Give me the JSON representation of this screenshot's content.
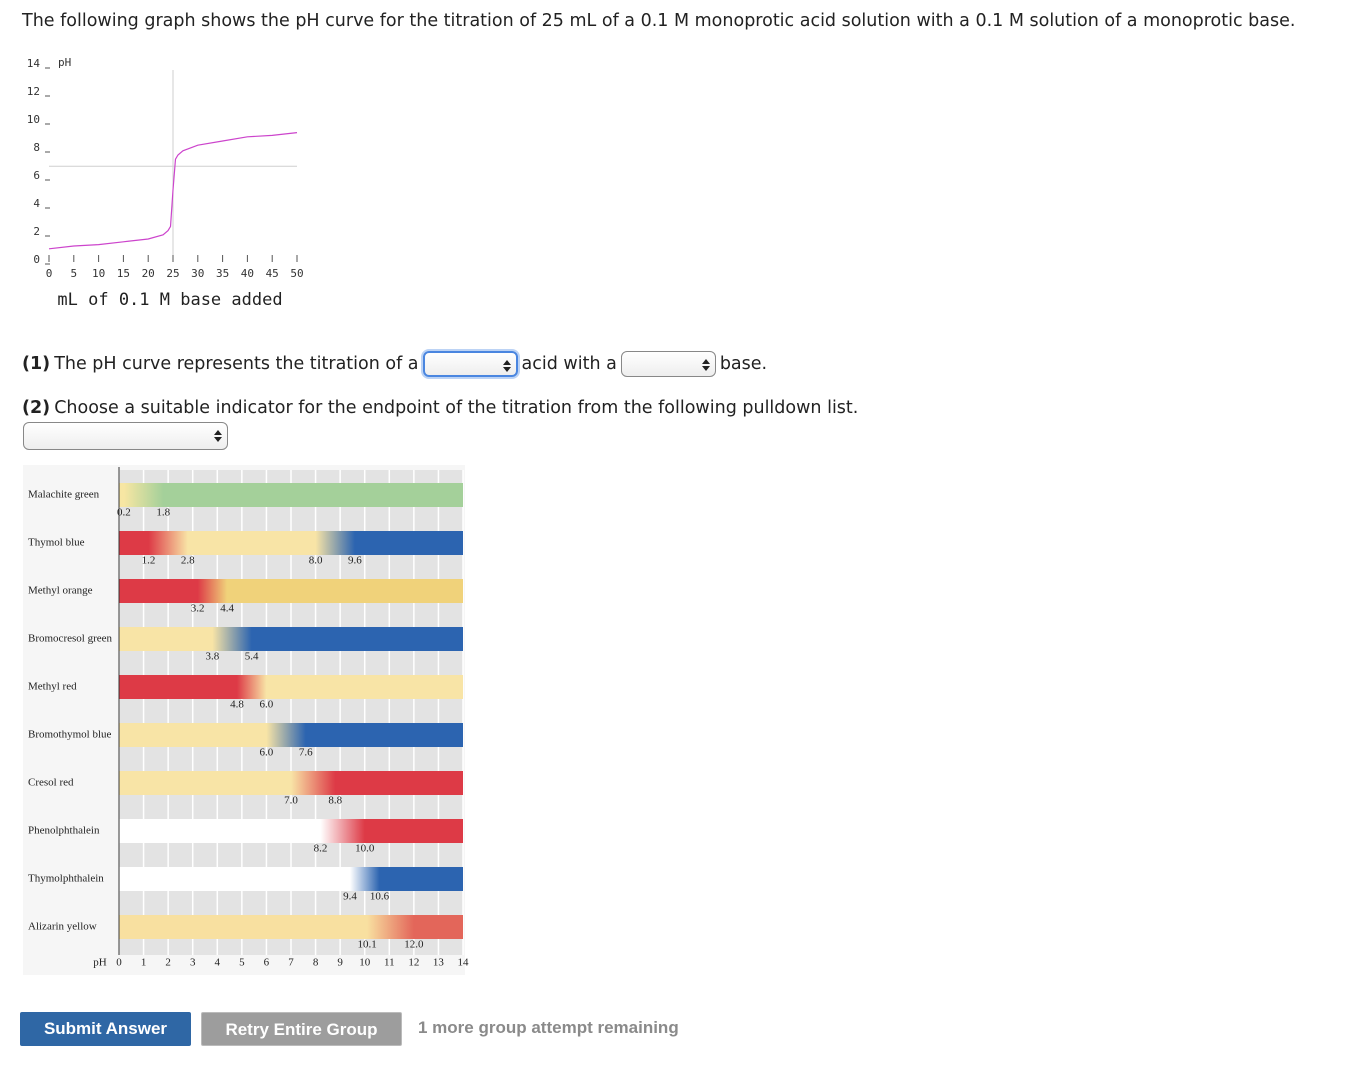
{
  "intro": "The following graph shows the pH curve for the titration of 25 mL of a 0.1 M monoprotic acid solution with a 0.1 M solution of a monoprotic base.",
  "ph_chart": {
    "type": "line",
    "y_label": "pH",
    "x_label": "mL of 0.1 M base added",
    "xlim": [
      0,
      50
    ],
    "ylim": [
      0,
      14
    ],
    "xticks": [
      0,
      5,
      10,
      15,
      20,
      25,
      30,
      35,
      40,
      45,
      50
    ],
    "yticks": [
      0,
      2,
      4,
      6,
      8,
      10,
      12,
      14
    ],
    "color": "#cc44cc",
    "x": [
      0,
      5,
      10,
      15,
      20,
      23,
      24,
      24.5,
      25,
      25.5,
      26,
      27,
      30,
      35,
      40,
      45,
      50
    ],
    "values": [
      0.8,
      1.0,
      1.1,
      1.3,
      1.5,
      1.8,
      2.1,
      2.4,
      5.0,
      7.2,
      7.5,
      7.8,
      8.2,
      8.5,
      8.8,
      8.9,
      9.1
    ],
    "reference_x": 25,
    "reference_y": 6.7
  },
  "question_1": {
    "number": "(1)",
    "text": "The pH curve represents the titration of a",
    "middle": "acid with a",
    "end": "base."
  },
  "question_2": {
    "number": "(2)",
    "text": "Choose a suitable indicator for the endpoint of the titration from the following pulldown list."
  },
  "indicator_chart": {
    "axis_label": "pH",
    "xlim": [
      0,
      14
    ],
    "xticks": [
      0,
      1,
      2,
      3,
      4,
      5,
      6,
      7,
      8,
      9,
      10,
      11,
      12,
      13,
      14
    ],
    "indicators": [
      {
        "name": "Malachite green",
        "ranges": [
          [
            0.2,
            1.8
          ]
        ],
        "colors": [
          "#f7e6a3",
          "#a4d09a"
        ]
      },
      {
        "name": "Thymol blue",
        "ranges": [
          [
            1.2,
            2.8
          ],
          [
            {
              "value": 8,
              "label": "8.0"
            },
            9.6
          ]
        ],
        "colors": [
          "#dd3a46",
          "#f8e4a6",
          "#2c64b0"
        ]
      },
      {
        "name": "Methyl orange",
        "ranges": [
          [
            3.2,
            4.4
          ]
        ],
        "colors": [
          "#dd3a46",
          "#f0d27a"
        ]
      },
      {
        "name": "Bromocresol green",
        "ranges": [
          [
            3.8,
            5.4
          ]
        ],
        "colors": [
          "#f8e4a6",
          "#2c64b0"
        ]
      },
      {
        "name": "Methyl red",
        "ranges": [
          [
            4.8,
            {
              "value": 6,
              "label": "6.0"
            }
          ]
        ],
        "colors": [
          "#dd3a46",
          "#f8e4a6"
        ]
      },
      {
        "name": "Bromothymol blue",
        "ranges": [
          [
            {
              "value": 6,
              "label": "6.0"
            },
            7.6
          ]
        ],
        "colors": [
          "#f8e4a6",
          "#2c64b0"
        ]
      },
      {
        "name": "Cresol red",
        "ranges": [
          [
            {
              "value": 7,
              "label": "7.0"
            },
            8.8
          ]
        ],
        "colors": [
          "#f8e4a6",
          "#dd3a46"
        ]
      },
      {
        "name": "Phenolphthalein",
        "ranges": [
          [
            8.2,
            {
              "value": 10,
              "label": "10.0"
            }
          ]
        ],
        "colors": [
          "#ffffff",
          "#dd3a46"
        ]
      },
      {
        "name": "Thymolphthalein",
        "ranges": [
          [
            9.4,
            10.6
          ]
        ],
        "colors": [
          "#ffffff",
          "#2c64b0"
        ]
      },
      {
        "name": "Alizarin yellow",
        "ranges": [
          [
            10.1,
            {
              "value": 12,
              "label": "12.0"
            }
          ]
        ],
        "colors": [
          "#f8e0a0",
          "#e3665a"
        ]
      }
    ]
  },
  "buttons": {
    "submit": "Submit Answer",
    "retry": "Retry Entire Group"
  },
  "attempts": "1 more group attempt remaining"
}
